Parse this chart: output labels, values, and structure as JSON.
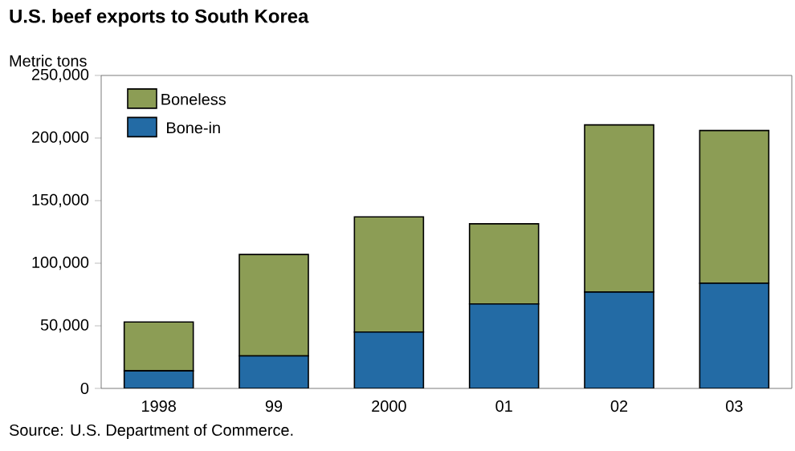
{
  "chart_data": {
    "type": "bar",
    "stacked": true,
    "title": "U.S. beef exports to South Korea",
    "ylabel": "Metric tons",
    "categories": [
      "1998",
      "99",
      "2000",
      "01",
      "02",
      "03"
    ],
    "series": [
      {
        "name": "Bone-in",
        "color": "#236ba5",
        "values": [
          14000,
          26000,
          45000,
          67500,
          77000,
          84000
        ]
      },
      {
        "name": "Boneless",
        "color": "#8c9d55",
        "values": [
          39000,
          81000,
          92000,
          64000,
          133500,
          122000
        ]
      }
    ],
    "ylim": [
      0,
      250000
    ],
    "yticks": [
      0,
      {
        "value": 50000,
        "label": "50,000"
      },
      {
        "value": 100000,
        "label": "100,000"
      },
      {
        "value": 150000,
        "label": "150,000"
      },
      {
        "value": 200000,
        "label": "200,000"
      },
      {
        "value": 250000,
        "label": "250,000"
      }
    ],
    "legend": "top left",
    "annotations": [
      "Source:  U.S. Department of Commerce."
    ]
  }
}
